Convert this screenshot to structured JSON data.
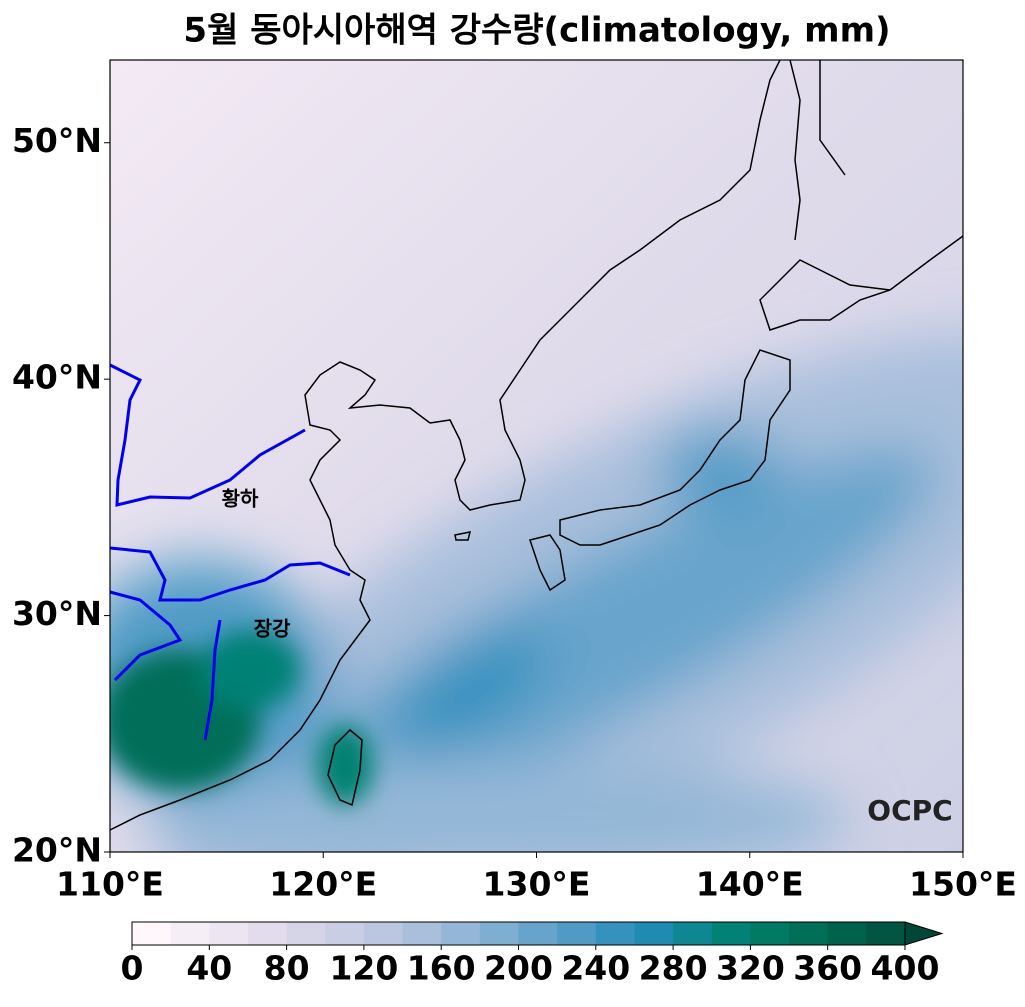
{
  "map": {
    "title": "5월 동아시아해역 강수량(climatology, mm)",
    "xlim": [
      110,
      150
    ],
    "ylim": [
      20,
      53.5
    ],
    "xticks": [
      {
        "value": 110,
        "label": "110°E"
      },
      {
        "value": 120,
        "label": "120°E"
      },
      {
        "value": 130,
        "label": "130°E"
      },
      {
        "value": 140,
        "label": "140°E"
      },
      {
        "value": 150,
        "label": "150°E"
      }
    ],
    "yticks": [
      {
        "value": 20,
        "label": "20°N"
      },
      {
        "value": 30,
        "label": "30°N"
      },
      {
        "value": 40,
        "label": "40°N"
      },
      {
        "value": 50,
        "label": "50°N"
      }
    ],
    "annotations": [
      "황하",
      "장강"
    ],
    "watermark": "OCPC",
    "colorbar": {
      "clim": [
        0,
        400
      ],
      "ticks": [
        0,
        40,
        80,
        120,
        160,
        200,
        240,
        280,
        320,
        360,
        400
      ],
      "colors": [
        "#fff7fb",
        "#f6eef6",
        "#ede5f1",
        "#e2dcec",
        "#d6d5e8",
        "#c9cee4",
        "#bbc7e0",
        "#a9bfdc",
        "#94b7d7",
        "#7eaed2",
        "#67a4cc",
        "#4f9bc6",
        "#3592bf",
        "#1f8bb0",
        "#0f8793",
        "#028176",
        "#017a63",
        "#016e58",
        "#01624c",
        "#015541"
      ],
      "extend_color": "#014636"
    }
  }
}
